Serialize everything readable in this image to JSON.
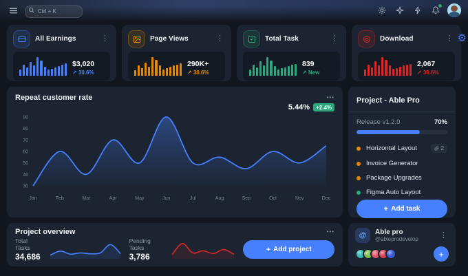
{
  "colors": {
    "primary": "#4680ff",
    "warning": "#e58a00",
    "success": "#2ca87f",
    "danger": "#dc2626"
  },
  "icons": {
    "kebab": "⋮",
    "ellipsis": "•••",
    "plus": "+",
    "gear": "⚙",
    "at_sign": "@"
  },
  "header": {
    "search": {
      "placeholder": "Ctrl + K"
    }
  },
  "stat_cards": [
    {
      "title": "All Earnings",
      "value": "$3,020",
      "arrow": "↗",
      "delta": "30.6%",
      "color": "#4680ff",
      "bars": [
        35,
        60,
        45,
        75,
        55,
        100,
        80,
        50,
        32,
        38,
        45,
        52,
        58,
        65
      ]
    },
    {
      "title": "Page Views",
      "value": "290K+",
      "arrow": "↗",
      "delta": "30.6%",
      "color": "#e58a00",
      "bars": [
        30,
        55,
        42,
        70,
        50,
        100,
        85,
        55,
        35,
        40,
        48,
        55,
        60,
        65
      ]
    },
    {
      "title": "Total Task",
      "value": "839",
      "arrow": "↗",
      "delta": "New",
      "color": "#2ca87f",
      "bars": [
        32,
        58,
        45,
        78,
        55,
        100,
        82,
        52,
        35,
        40,
        46,
        52,
        58,
        62
      ]
    },
    {
      "title": "Download",
      "value": "2,067",
      "arrow": "↗",
      "delta": "30.6%",
      "color": "#dc2626",
      "bars": [
        34,
        60,
        46,
        76,
        54,
        100,
        84,
        54,
        36,
        42,
        48,
        54,
        60,
        64
      ]
    }
  ],
  "repeat_chart": {
    "title": "Repeat customer rate",
    "rate": "5.44%",
    "badge": "+2.4%",
    "chart": {
      "type": "area",
      "categories": [
        "Jan",
        "Feb",
        "Mar",
        "Apr",
        "May",
        "Jun",
        "Jul",
        "Aug",
        "Sep",
        "Oct",
        "Nov",
        "Dec"
      ],
      "values": [
        30,
        60,
        40,
        70,
        50,
        90,
        50,
        55,
        45,
        60,
        50,
        65
      ],
      "yticks": [
        30,
        40,
        50,
        60,
        70,
        80,
        90
      ],
      "ymin": 30,
      "ymax": 90
    }
  },
  "project_panel": {
    "title": "Project - Able Pro",
    "release_label": "Release v1.2.0",
    "progress_label": "70%",
    "progress_percent": 70,
    "tasks": [
      {
        "label": "Horizontal Layout",
        "dot_color": "#e58a00",
        "badge": "2"
      },
      {
        "label": "Invoice Generator",
        "dot_color": "#e58a00"
      },
      {
        "label": "Package Upgrades",
        "dot_color": "#e58a00"
      },
      {
        "label": "Figma Auto Layout",
        "dot_color": "#2ca87f"
      }
    ],
    "add_task_label": "Add task"
  },
  "project_overview": {
    "title": "Project overview",
    "total_tasks_label": "Total Tasks",
    "total_tasks_value": "34,686",
    "pending_tasks_label": "Pending Tasks",
    "pending_tasks_value": "3,786",
    "add_project_label": "Add project",
    "spark_blue": [
      15,
      42,
      22,
      30,
      24,
      30,
      85,
      25
    ],
    "spark_red": [
      18,
      92,
      30,
      44,
      26,
      52,
      20
    ]
  },
  "team_card": {
    "title": "Able pro",
    "handle": "@ableprodevelop",
    "avatar_colors": [
      "#35b8b8",
      "#78c04a",
      "#e0526a",
      "#d8414e",
      "#3b5bdb"
    ]
  }
}
